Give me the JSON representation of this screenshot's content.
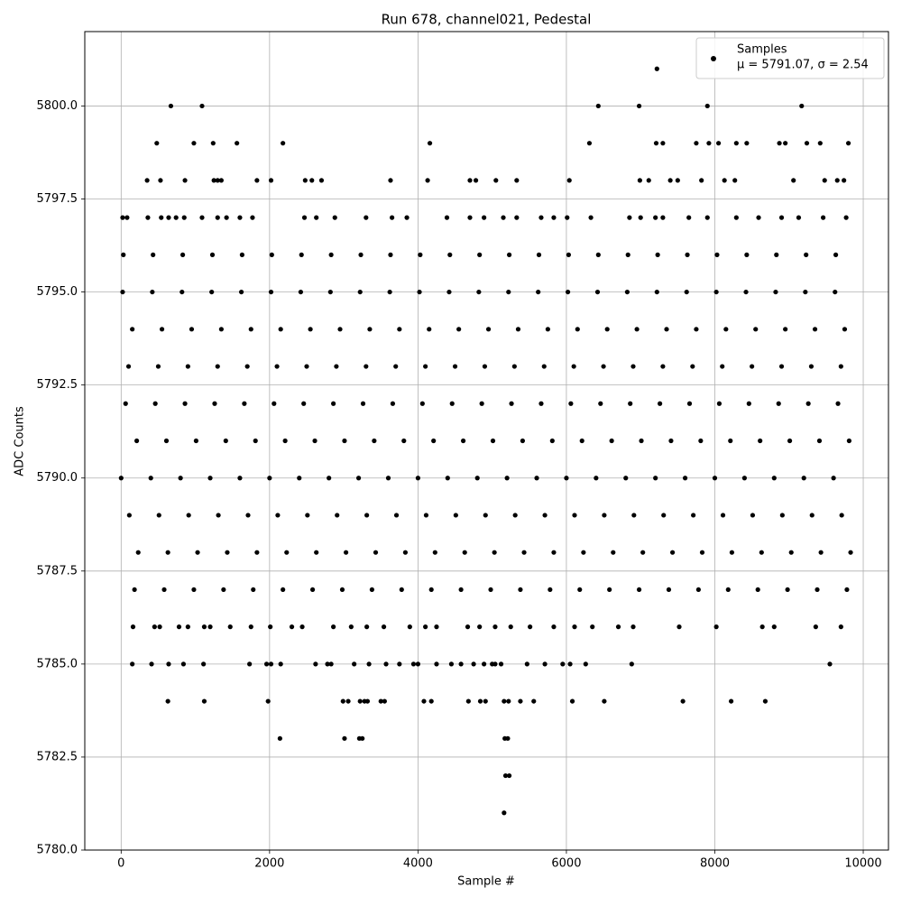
{
  "chart_data": {
    "type": "scatter",
    "title": "Run 678, channel021, Pedestal",
    "x_label": "Sample #",
    "y_label": "ADC Counts",
    "xlim": [
      -490,
      10340
    ],
    "ylim": [
      5780,
      5802.0
    ],
    "xticks": [
      0,
      2000,
      4000,
      6000,
      8000,
      10000
    ],
    "yticks": [
      {
        "value": 5780,
        "label": "5780.0"
      },
      {
        "value": 5782.5,
        "label": "5782.5"
      },
      {
        "value": 5785,
        "label": "5785.0"
      },
      {
        "value": 5787.5,
        "label": "5787.5"
      },
      {
        "value": 5790,
        "label": "5790.0"
      },
      {
        "value": 5792.5,
        "label": "5792.5"
      },
      {
        "value": 5795,
        "label": "5795.0"
      },
      {
        "value": 5797.5,
        "label": "5797.5"
      },
      {
        "value": 5800,
        "label": "5800.0"
      }
    ],
    "grid": true,
    "legend": "upper right",
    "legend_note": "μ = 5791.07, σ = 2.54",
    "series": [
      {
        "name": "Samples",
        "color": "#000000",
        "x": [
          7220,
          670,
          1090,
          6430,
          6980,
          7900,
          9170,
          480,
          980,
          1240,
          1560,
          2180,
          4160,
          6310,
          7210,
          7300,
          7750,
          7920,
          8050,
          8290,
          8430,
          8870,
          8950,
          9240,
          9420,
          9800,
          350,
          530,
          860,
          1250,
          1300,
          1350,
          1830,
          2020,
          2480,
          2570,
          2700,
          3630,
          4130,
          4700,
          4780,
          5050,
          5330,
          6040,
          6990,
          7110,
          7400,
          7500,
          7820,
          8130,
          8270,
          9060,
          9480,
          9650,
          9740,
          20,
          80,
          360,
          540,
          640,
          740,
          850,
          1090,
          1300,
          1420,
          1600,
          1770,
          2470,
          2630,
          2880,
          3300,
          3650,
          3850,
          4390,
          4700,
          4890,
          5150,
          5330,
          5660,
          5830,
          6010,
          6330,
          6850,
          7000,
          7200,
          7300,
          7650,
          7900,
          8290,
          8590,
          8900,
          9130,
          9460,
          9770,
          30,
          430,
          830,
          1230,
          1630,
          2030,
          2430,
          2830,
          3230,
          3630,
          4030,
          4430,
          4830,
          5230,
          5630,
          6030,
          6430,
          6830,
          7230,
          7630,
          8030,
          8430,
          8830,
          9230,
          9630,
          20,
          420,
          820,
          1220,
          1620,
          2020,
          2420,
          2820,
          3220,
          3620,
          4020,
          4420,
          4820,
          5220,
          5620,
          6020,
          6420,
          6820,
          7220,
          7620,
          8020,
          8420,
          8820,
          9220,
          9620,
          150,
          550,
          950,
          1350,
          1750,
          2150,
          2550,
          2950,
          3350,
          3750,
          4150,
          4550,
          4950,
          5350,
          5750,
          6150,
          6550,
          6950,
          7350,
          7750,
          8150,
          8550,
          8950,
          9350,
          9750,
          100,
          500,
          900,
          1300,
          1700,
          2100,
          2500,
          2900,
          3300,
          3700,
          4100,
          4500,
          4900,
          5300,
          5700,
          6100,
          6500,
          6900,
          7300,
          7700,
          8100,
          8500,
          8900,
          9300,
          9700,
          60,
          460,
          860,
          1260,
          1660,
          2060,
          2460,
          2860,
          3260,
          3660,
          4060,
          4460,
          4860,
          5260,
          5660,
          6060,
          6460,
          6860,
          7260,
          7660,
          8060,
          8460,
          8860,
          9260,
          9660,
          210,
          610,
          1010,
          1410,
          1810,
          2210,
          2610,
          3010,
          3410,
          3810,
          4210,
          4610,
          5010,
          5410,
          5810,
          6210,
          6610,
          7010,
          7410,
          7810,
          8210,
          8610,
          9010,
          9410,
          9810,
          0,
          400,
          800,
          1200,
          1600,
          2000,
          2400,
          2800,
          3200,
          3600,
          4000,
          4400,
          4800,
          5200,
          5600,
          6000,
          6400,
          6800,
          7200,
          7600,
          8000,
          8400,
          8800,
          9200,
          9600,
          110,
          510,
          910,
          1310,
          1710,
          2110,
          2510,
          2910,
          3310,
          3710,
          4110,
          4510,
          4910,
          5310,
          5710,
          6110,
          6510,
          6910,
          7310,
          7710,
          8110,
          8510,
          8910,
          9310,
          9710,
          230,
          630,
          1030,
          1430,
          1830,
          2230,
          2630,
          3030,
          3430,
          3830,
          4230,
          4630,
          5030,
          5430,
          5830,
          6230,
          6630,
          7030,
          7430,
          7830,
          8230,
          8630,
          9030,
          9430,
          9830,
          180,
          580,
          980,
          1380,
          1780,
          2180,
          2580,
          2980,
          3380,
          3780,
          4180,
          4580,
          4980,
          5380,
          5780,
          6180,
          6580,
          6980,
          7380,
          7780,
          8180,
          8580,
          8980,
          9380,
          9780,
          160,
          450,
          520,
          780,
          900,
          1120,
          1200,
          1470,
          1750,
          2010,
          2300,
          2440,
          2860,
          3100,
          3310,
          3540,
          3890,
          4100,
          4250,
          4670,
          4830,
          5040,
          5250,
          5510,
          5830,
          6110,
          6350,
          6700,
          6900,
          7520,
          8020,
          8640,
          8800,
          9360,
          9700,
          150,
          410,
          640,
          840,
          1110,
          1730,
          1960,
          2020,
          2150,
          2620,
          2780,
          2830,
          3140,
          3340,
          3570,
          3750,
          3940,
          4000,
          4250,
          4450,
          4580,
          4750,
          4890,
          5000,
          5040,
          5120,
          5470,
          5710,
          5950,
          6050,
          6260,
          6880,
          9550,
          630,
          1120,
          1980,
          2990,
          3060,
          3220,
          3280,
          3320,
          3500,
          3550,
          4080,
          4180,
          4680,
          4840,
          4910,
          5160,
          5220,
          5380,
          5560,
          6080,
          6510,
          7570,
          8220,
          8680,
          2140,
          3010,
          3210,
          3250,
          5170,
          5210,
          5180,
          5230,
          5160
        ],
        "values": [
          5801,
          5800,
          5800,
          5800,
          5800,
          5800,
          5800,
          5799,
          5799,
          5799,
          5799,
          5799,
          5799,
          5799,
          5799,
          5799,
          5799,
          5799,
          5799,
          5799,
          5799,
          5799,
          5799,
          5799,
          5799,
          5799,
          5798,
          5798,
          5798,
          5798,
          5798,
          5798,
          5798,
          5798,
          5798,
          5798,
          5798,
          5798,
          5798,
          5798,
          5798,
          5798,
          5798,
          5798,
          5798,
          5798,
          5798,
          5798,
          5798,
          5798,
          5798,
          5798,
          5798,
          5798,
          5798,
          5797,
          5797,
          5797,
          5797,
          5797,
          5797,
          5797,
          5797,
          5797,
          5797,
          5797,
          5797,
          5797,
          5797,
          5797,
          5797,
          5797,
          5797,
          5797,
          5797,
          5797,
          5797,
          5797,
          5797,
          5797,
          5797,
          5797,
          5797,
          5797,
          5797,
          5797,
          5797,
          5797,
          5797,
          5797,
          5797,
          5797,
          5797,
          5797,
          5796,
          5796,
          5796,
          5796,
          5796,
          5796,
          5796,
          5796,
          5796,
          5796,
          5796,
          5796,
          5796,
          5796,
          5796,
          5796,
          5796,
          5796,
          5796,
          5796,
          5796,
          5796,
          5796,
          5796,
          5796,
          5795,
          5795,
          5795,
          5795,
          5795,
          5795,
          5795,
          5795,
          5795,
          5795,
          5795,
          5795,
          5795,
          5795,
          5795,
          5795,
          5795,
          5795,
          5795,
          5795,
          5795,
          5795,
          5795,
          5795,
          5795,
          5794,
          5794,
          5794,
          5794,
          5794,
          5794,
          5794,
          5794,
          5794,
          5794,
          5794,
          5794,
          5794,
          5794,
          5794,
          5794,
          5794,
          5794,
          5794,
          5794,
          5794,
          5794,
          5794,
          5794,
          5794,
          5793,
          5793,
          5793,
          5793,
          5793,
          5793,
          5793,
          5793,
          5793,
          5793,
          5793,
          5793,
          5793,
          5793,
          5793,
          5793,
          5793,
          5793,
          5793,
          5793,
          5793,
          5793,
          5793,
          5793,
          5793,
          5792,
          5792,
          5792,
          5792,
          5792,
          5792,
          5792,
          5792,
          5792,
          5792,
          5792,
          5792,
          5792,
          5792,
          5792,
          5792,
          5792,
          5792,
          5792,
          5792,
          5792,
          5792,
          5792,
          5792,
          5792,
          5791,
          5791,
          5791,
          5791,
          5791,
          5791,
          5791,
          5791,
          5791,
          5791,
          5791,
          5791,
          5791,
          5791,
          5791,
          5791,
          5791,
          5791,
          5791,
          5791,
          5791,
          5791,
          5791,
          5791,
          5791,
          5790,
          5790,
          5790,
          5790,
          5790,
          5790,
          5790,
          5790,
          5790,
          5790,
          5790,
          5790,
          5790,
          5790,
          5790,
          5790,
          5790,
          5790,
          5790,
          5790,
          5790,
          5790,
          5790,
          5790,
          5790,
          5789,
          5789,
          5789,
          5789,
          5789,
          5789,
          5789,
          5789,
          5789,
          5789,
          5789,
          5789,
          5789,
          5789,
          5789,
          5789,
          5789,
          5789,
          5789,
          5789,
          5789,
          5789,
          5789,
          5789,
          5789,
          5788,
          5788,
          5788,
          5788,
          5788,
          5788,
          5788,
          5788,
          5788,
          5788,
          5788,
          5788,
          5788,
          5788,
          5788,
          5788,
          5788,
          5788,
          5788,
          5788,
          5788,
          5788,
          5788,
          5788,
          5788,
          5787,
          5787,
          5787,
          5787,
          5787,
          5787,
          5787,
          5787,
          5787,
          5787,
          5787,
          5787,
          5787,
          5787,
          5787,
          5787,
          5787,
          5787,
          5787,
          5787,
          5787,
          5787,
          5787,
          5787,
          5787,
          5786,
          5786,
          5786,
          5786,
          5786,
          5786,
          5786,
          5786,
          5786,
          5786,
          5786,
          5786,
          5786,
          5786,
          5786,
          5786,
          5786,
          5786,
          5786,
          5786,
          5786,
          5786,
          5786,
          5786,
          5786,
          5786,
          5786,
          5786,
          5786,
          5786,
          5786,
          5786,
          5786,
          5786,
          5786,
          5785,
          5785,
          5785,
          5785,
          5785,
          5785,
          5785,
          5785,
          5785,
          5785,
          5785,
          5785,
          5785,
          5785,
          5785,
          5785,
          5785,
          5785,
          5785,
          5785,
          5785,
          5785,
          5785,
          5785,
          5785,
          5785,
          5785,
          5785,
          5785,
          5785,
          5785,
          5785,
          5785,
          5784,
          5784,
          5784,
          5784,
          5784,
          5784,
          5784,
          5784,
          5784,
          5784,
          5784,
          5784,
          5784,
          5784,
          5784,
          5784,
          5784,
          5784,
          5784,
          5784,
          5784,
          5784,
          5784,
          5784,
          5783,
          5783,
          5783,
          5783,
          5783,
          5783,
          5782,
          5782,
          5781
        ]
      }
    ]
  }
}
